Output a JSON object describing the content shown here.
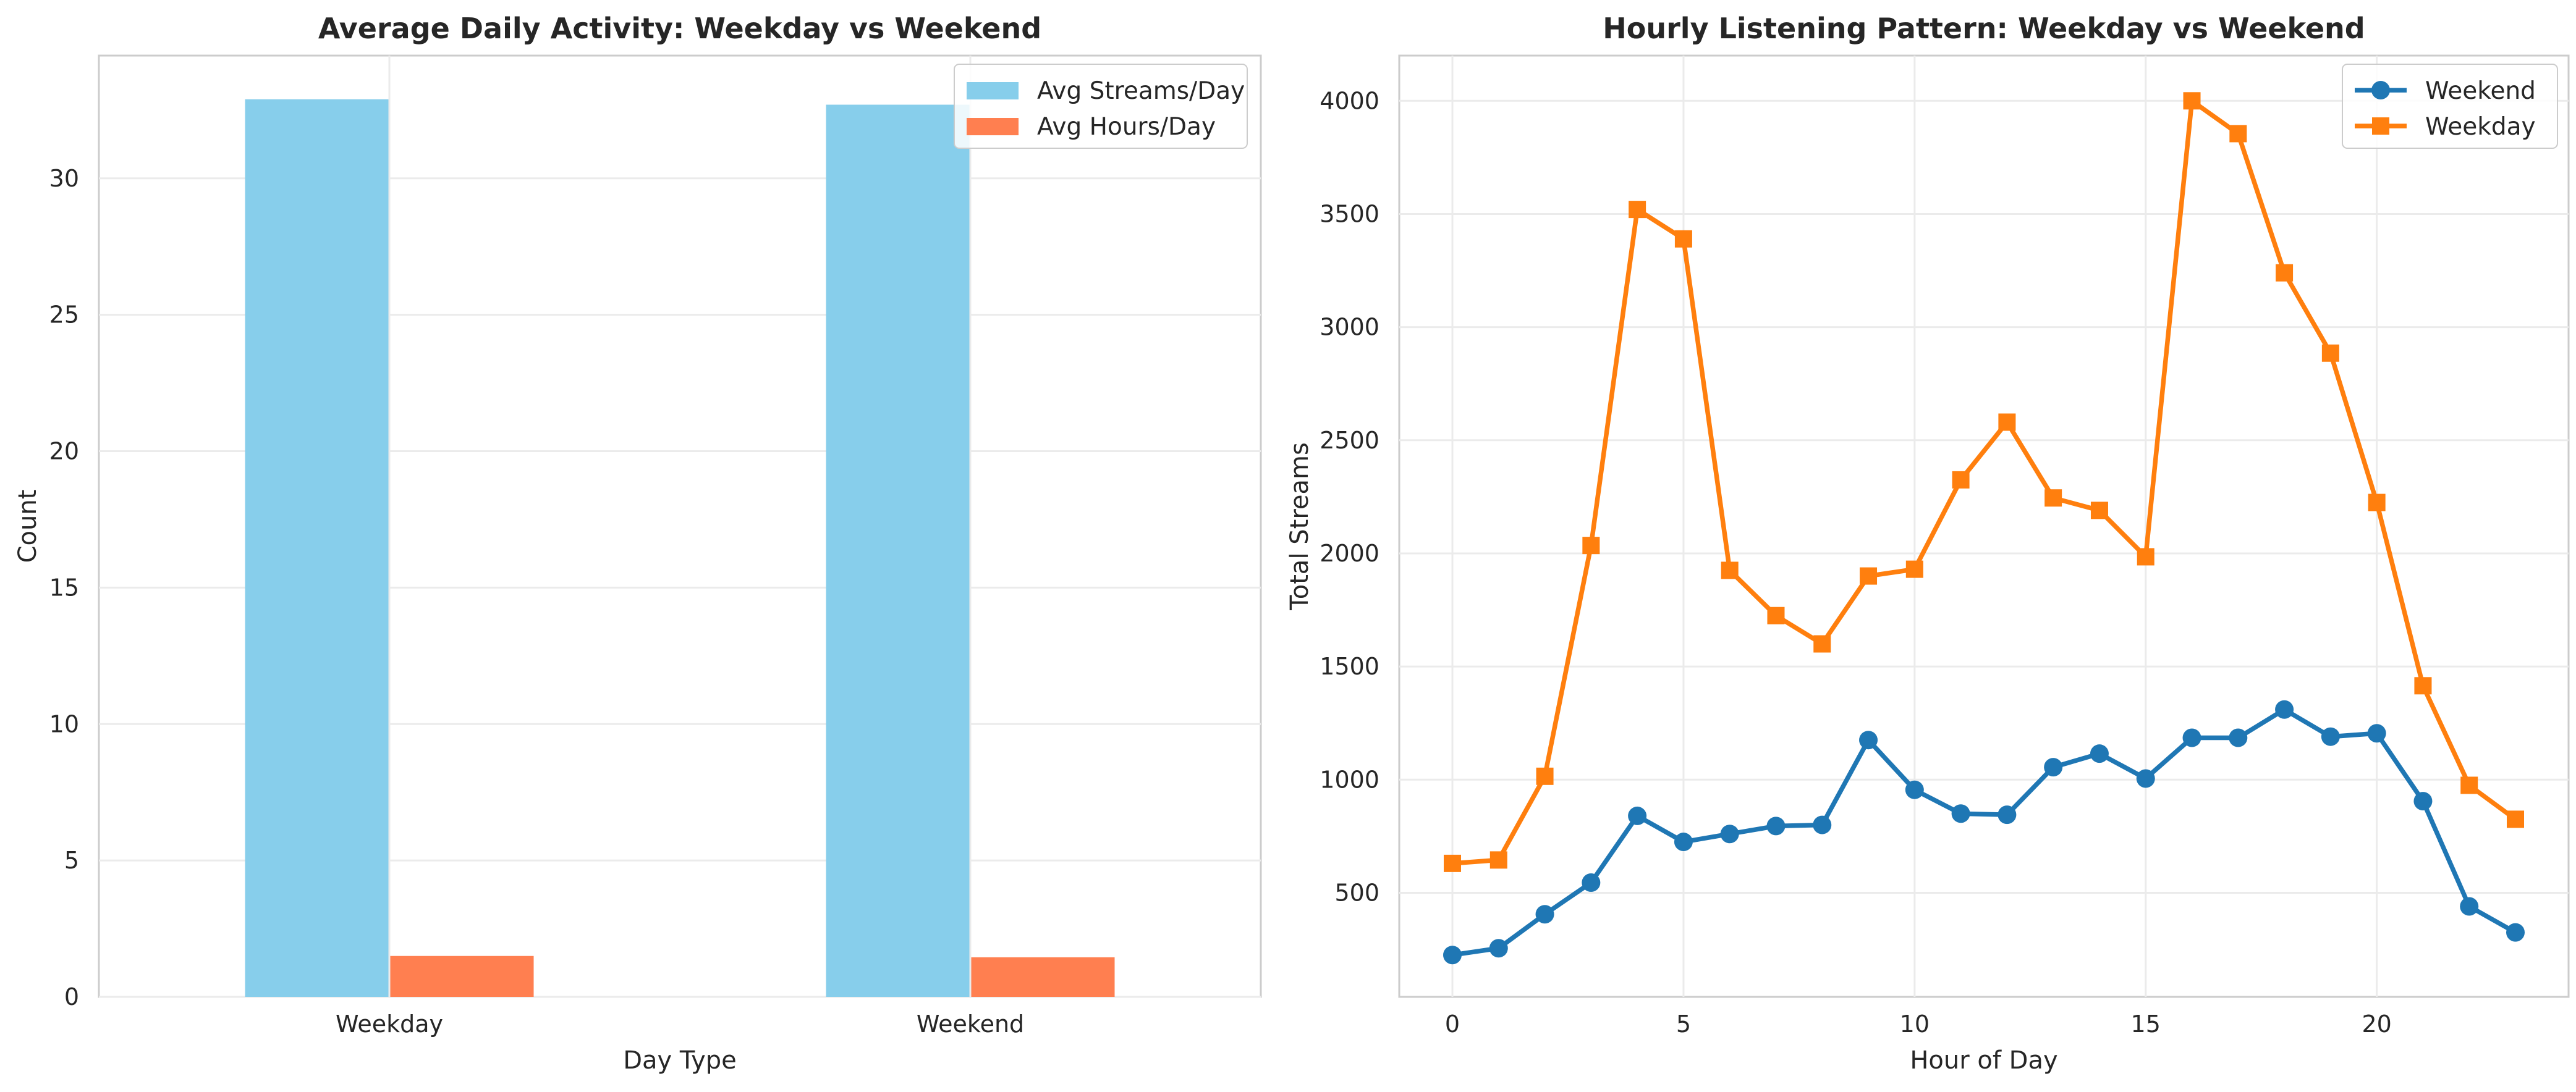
{
  "chart_data": [
    {
      "type": "bar",
      "title": "Average Daily Activity: Weekday vs Weekend",
      "xlabel": "Day Type",
      "ylabel": "Count",
      "categories": [
        "Weekday",
        "Weekend"
      ],
      "ylim": [
        0,
        34.5
      ],
      "yticks": [
        0,
        5,
        10,
        15,
        20,
        25,
        30
      ],
      "grid": true,
      "legend_position": "upper right",
      "series": [
        {
          "name": "Avg Streams/Day",
          "color": "#87ceeb",
          "values": [
            32.9,
            32.7
          ]
        },
        {
          "name": "Avg Hours/Day",
          "color": "#ff7f50",
          "values": [
            1.5,
            1.45
          ]
        }
      ]
    },
    {
      "type": "line",
      "title": "Hourly Listening Pattern: Weekday vs Weekend",
      "xlabel": "Hour of Day",
      "ylabel": "Total Streams",
      "xlim": [
        -1.15,
        24.15
      ],
      "ylim": [
        40,
        4200
      ],
      "xticks": [
        0,
        5,
        10,
        15,
        20
      ],
      "yticks": [
        500,
        1000,
        1500,
        2000,
        2500,
        3000,
        3500,
        4000
      ],
      "grid": true,
      "legend_position": "upper right",
      "x": [
        0,
        1,
        2,
        3,
        4,
        5,
        6,
        7,
        8,
        9,
        10,
        11,
        12,
        13,
        14,
        15,
        16,
        17,
        18,
        19,
        20,
        21,
        22,
        23
      ],
      "series": [
        {
          "name": "Weekend",
          "color": "#1f77b4",
          "marker": "circle",
          "values": [
            225,
            255,
            405,
            545,
            840,
            725,
            760,
            795,
            800,
            1175,
            955,
            850,
            845,
            1055,
            1115,
            1005,
            1185,
            1185,
            1310,
            1190,
            1205,
            905,
            440,
            325
          ]
        },
        {
          "name": "Weekday",
          "color": "#ff7f0e",
          "marker": "square",
          "values": [
            630,
            645,
            1015,
            2035,
            3520,
            3390,
            1925,
            1725,
            1600,
            1900,
            1930,
            2325,
            2580,
            2245,
            2190,
            1985,
            4000,
            3855,
            3240,
            2885,
            2225,
            1415,
            975,
            825
          ]
        }
      ]
    }
  ]
}
